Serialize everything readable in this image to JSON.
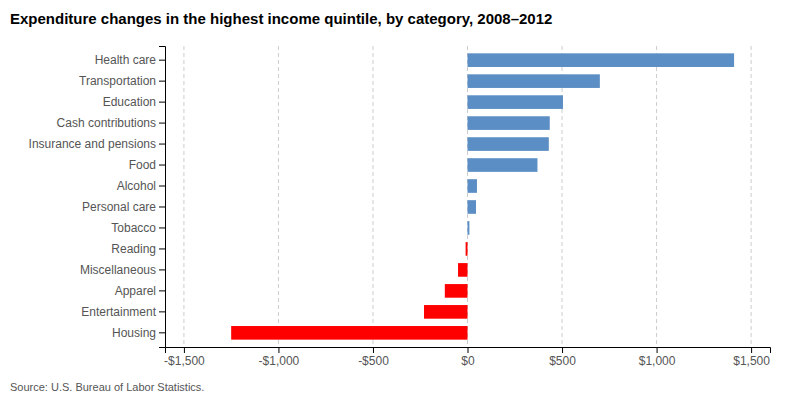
{
  "chart_data": {
    "type": "bar",
    "orientation": "horizontal",
    "title": "Expenditure changes in the highest income quintile, by category, 2008–2012",
    "annotations": [
      "Source: U.S. Bureau of Labor Statistics."
    ],
    "categories": [
      "Health care",
      "Transportation",
      "Education",
      "Cash contributions",
      "Insurance and pensions",
      "Food",
      "Alcohol",
      "Personal care",
      "Tobacco",
      "Reading",
      "Miscellaneous",
      "Apparel",
      "Entertainment",
      "Housing"
    ],
    "values": [
      1410,
      700,
      505,
      435,
      430,
      370,
      50,
      45,
      10,
      -10,
      -50,
      -120,
      -230,
      -1250
    ],
    "colors": [
      "#5b8ec4",
      "#5b8ec4",
      "#5b8ec4",
      "#5b8ec4",
      "#5b8ec4",
      "#5b8ec4",
      "#5b8ec4",
      "#5b8ec4",
      "#5b8ec4",
      "#ff0000",
      "#ff0000",
      "#ff0000",
      "#ff0000",
      "#ff0000"
    ],
    "xlim": [
      -1600,
      1600
    ],
    "xticks": [
      {
        "value": -1500,
        "label": "-$1,500"
      },
      {
        "value": -1000,
        "label": "-$1,000"
      },
      {
        "value": -500,
        "label": "-$500"
      },
      {
        "value": 0,
        "label": "$0"
      },
      {
        "value": 500,
        "label": "$500"
      },
      {
        "value": 1000,
        "label": "$1,000"
      },
      {
        "value": 1500,
        "label": "$1,500"
      }
    ],
    "grid": true
  }
}
